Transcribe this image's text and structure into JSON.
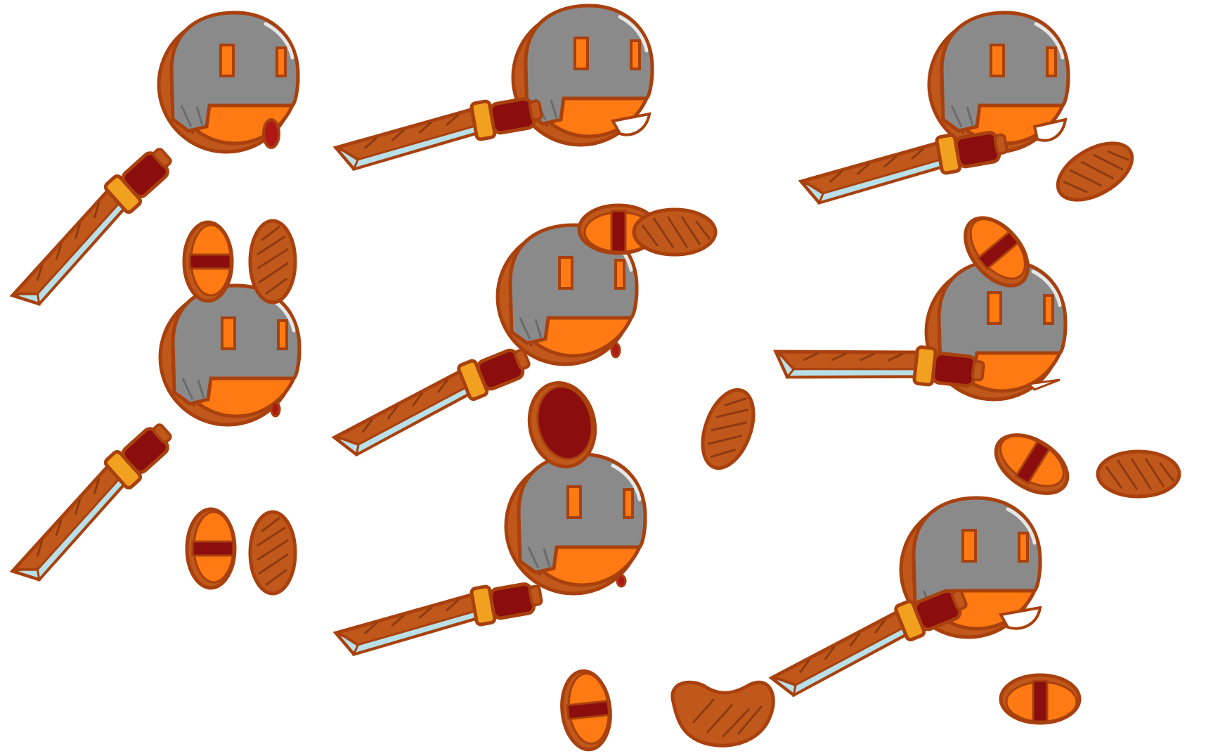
{
  "sheet": {
    "description_visible_text": "",
    "background_color": "#ffffff"
  },
  "palette": {
    "outline": "#a8410e",
    "wood": "#c0581c",
    "skin_orange": "#ff7a12",
    "helmet_gray": "#8a8a8a",
    "helmet_highlight": "#e6e6e6",
    "grip_red": "#8b0d0d",
    "blade_light": "#b8e0e8",
    "guard_yellow": "#f2a020",
    "hatch": "#8e3a10",
    "mouth_dark": "#b01818"
  },
  "sprites": {
    "heads": [
      {
        "name": "head-shout",
        "expression": "mouth-open"
      },
      {
        "name": "head-grin",
        "expression": "grin"
      },
      {
        "name": "head-grin-right",
        "expression": "grin"
      },
      {
        "name": "head-small-o-center",
        "expression": "small-o"
      },
      {
        "name": "head-small-o-left",
        "expression": "small-o"
      },
      {
        "name": "head-smirk-right",
        "expression": "smirk"
      },
      {
        "name": "head-small-o-bottom",
        "expression": "small-o"
      },
      {
        "name": "head-grin-bottom-right",
        "expression": "grin"
      }
    ],
    "swords": [
      "sword-diagonal-top-left",
      "sword-horizontal-top-center",
      "sword-curved-top-right",
      "sword-diagonal-middle-left",
      "sword-center",
      "sword-curved-middle-right",
      "sword-horizontal-bottom-center",
      "sword-bottom-right"
    ],
    "hands": [
      "hand-banded-top-left",
      "hand-plain-top-left",
      "hand-banded-horizontal-top-center",
      "hand-plain-horizontal-top-center",
      "hand-plain-top-right",
      "hand-banded-tilted-top-right",
      "hand-banded-middle-left",
      "hand-plain-middle-left",
      "hand-dark-shield-center",
      "hand-plain-center",
      "hand-banded-middle-right",
      "hand-plain-horizontal-middle-right",
      "hand-banded-bottom-center",
      "hand-bean-bottom-center",
      "hand-banded-horizontal-bottom-right"
    ]
  }
}
